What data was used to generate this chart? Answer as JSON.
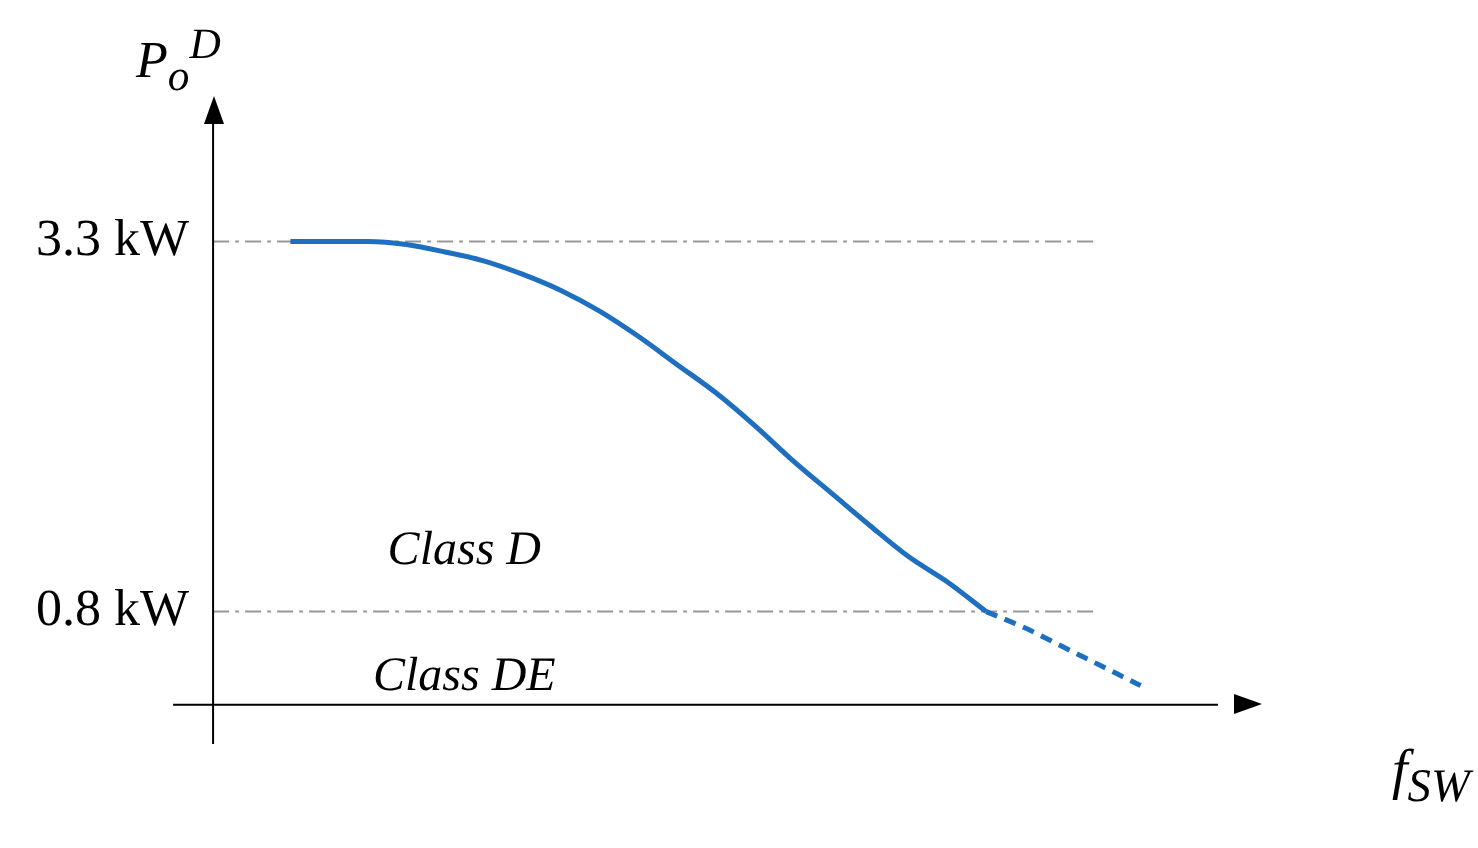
{
  "chart_data": {
    "type": "line",
    "xlabel": "f$_{SW}$",
    "ylabel": "P$_{o}$$^{D}$",
    "categories": [
      null,
      null,
      null,
      null,
      null,
      null,
      null,
      null,
      null,
      null,
      null,
      null,
      null,
      null,
      null,
      null,
      null,
      null,
      null,
      null,
      null,
      null,
      null,
      null,
      null,
      null,
      null
    ],
    "series": [
      {
        "color": "#1f6fc0",
        "line_style": "solid",
        "values": [
          null,
          null,
          3.3,
          3.3,
          3.3,
          3.28,
          3.23,
          3.17,
          3.08,
          2.97,
          2.83,
          2.66,
          2.47,
          2.28,
          2.06,
          1.82,
          1.6,
          1.38,
          1.17,
          1.0,
          0.8,
          null,
          null,
          null,
          null,
          null,
          null
        ]
      },
      {
        "color": "#1f6fc0",
        "line_style": "dashed",
        "values": [
          null,
          null,
          null,
          null,
          null,
          null,
          null,
          null,
          null,
          null,
          null,
          null,
          null,
          null,
          null,
          null,
          null,
          null,
          null,
          null,
          0.8,
          0.69,
          0.56,
          0.43,
          0.3,
          null,
          null
        ]
      }
    ],
    "ylim": [
      0.17,
      4.1
    ],
    "yticks": [
      {
        "value": 3.3,
        "label": "3.3 kW"
      },
      {
        "value": 0.8,
        "label": "0.8 kW"
      }
    ],
    "ref_lines": [
      {
        "axis": "y",
        "value": 3.3,
        "color": "#999999",
        "line_style": "dashdot"
      },
      {
        "axis": "y",
        "value": 0.8,
        "color": "#999999",
        "line_style": "dashdot"
      }
    ],
    "annotations": [
      "Class D",
      "Class DE"
    ],
    "tick_labels": "y",
    "grid": false,
    "legend": false,
    "marker": "none"
  }
}
